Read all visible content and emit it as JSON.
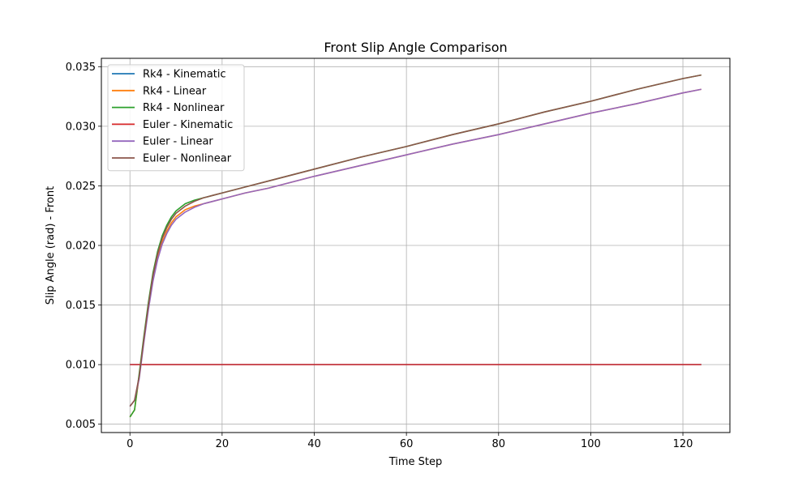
{
  "chart_data": {
    "type": "line",
    "title": "Front Slip Angle Comparison",
    "xlabel": "Time Step",
    "ylabel": "Slip Angle (rad) - Front",
    "xlim": [
      -6.2,
      130.2
    ],
    "ylim": [
      0.0043,
      0.0357
    ],
    "xticks": [
      0,
      20,
      40,
      60,
      80,
      100,
      120
    ],
    "xtick_labels": [
      "0",
      "20",
      "40",
      "60",
      "80",
      "100",
      "120"
    ],
    "yticks": [
      0.005,
      0.01,
      0.015,
      0.02,
      0.025,
      0.03,
      0.035
    ],
    "ytick_labels": [
      "0.005",
      "0.010",
      "0.015",
      "0.020",
      "0.025",
      "0.030",
      "0.035"
    ],
    "grid": true,
    "legend_position": "top-left",
    "series": [
      {
        "name": "Rk4 - Kinematic",
        "color": "#1f77b4",
        "x": [
          0,
          124
        ],
        "y": [
          0.01,
          0.01
        ]
      },
      {
        "name": "Rk4 - Linear",
        "color": "#ff7f0e",
        "x": [
          0,
          1,
          2,
          3,
          4,
          5,
          6,
          7,
          8,
          9,
          10,
          12,
          14,
          16,
          18,
          20,
          25,
          30,
          40,
          50,
          60,
          70,
          80,
          90,
          100,
          110,
          120,
          124
        ],
        "y": [
          0.0056,
          0.0062,
          0.009,
          0.012,
          0.0148,
          0.0172,
          0.019,
          0.0203,
          0.0212,
          0.0219,
          0.0224,
          0.023,
          0.0233,
          0.0235,
          0.0237,
          0.0239,
          0.0244,
          0.0248,
          0.0258,
          0.0267,
          0.0276,
          0.0285,
          0.0293,
          0.0302,
          0.0311,
          0.0319,
          0.0328,
          0.0331
        ]
      },
      {
        "name": "Rk4 - Nonlinear",
        "color": "#2ca02c",
        "x": [
          0,
          1,
          2,
          3,
          4,
          5,
          6,
          7,
          8,
          9,
          10,
          12,
          14,
          16,
          18,
          20,
          25,
          30,
          40,
          50,
          60,
          70,
          80,
          90,
          100,
          110,
          120,
          124
        ],
        "y": [
          0.0056,
          0.0062,
          0.0092,
          0.0123,
          0.0152,
          0.0177,
          0.0195,
          0.0208,
          0.0217,
          0.0224,
          0.0229,
          0.0235,
          0.0238,
          0.024,
          0.0242,
          0.0244,
          0.0249,
          0.0254,
          0.0264,
          0.0274,
          0.0283,
          0.0293,
          0.0302,
          0.0312,
          0.0321,
          0.0331,
          0.034,
          0.0343
        ]
      },
      {
        "name": "Euler - Kinematic",
        "color": "#d62728",
        "x": [
          0,
          124
        ],
        "y": [
          0.01,
          0.01
        ]
      },
      {
        "name": "Euler - Linear",
        "color": "#9467bd",
        "x": [
          0,
          1,
          2,
          3,
          4,
          5,
          6,
          7,
          8,
          9,
          10,
          12,
          14,
          16,
          18,
          20,
          25,
          30,
          40,
          50,
          60,
          70,
          80,
          90,
          100,
          110,
          120,
          124
        ],
        "y": [
          0.0065,
          0.007,
          0.0088,
          0.0118,
          0.0146,
          0.017,
          0.0188,
          0.0201,
          0.021,
          0.0217,
          0.0222,
          0.0228,
          0.0232,
          0.0235,
          0.0237,
          0.0239,
          0.0244,
          0.0248,
          0.0258,
          0.0267,
          0.0276,
          0.0285,
          0.0293,
          0.0302,
          0.0311,
          0.0319,
          0.0328,
          0.0331
        ]
      },
      {
        "name": "Euler - Nonlinear",
        "color": "#8c564b",
        "x": [
          0,
          1,
          2,
          3,
          4,
          5,
          6,
          7,
          8,
          9,
          10,
          12,
          14,
          16,
          18,
          20,
          25,
          30,
          40,
          50,
          60,
          70,
          80,
          90,
          100,
          110,
          120,
          124
        ],
        "y": [
          0.0065,
          0.007,
          0.009,
          0.0121,
          0.015,
          0.0175,
          0.0193,
          0.0206,
          0.0215,
          0.0222,
          0.0227,
          0.0233,
          0.0237,
          0.024,
          0.0242,
          0.0244,
          0.0249,
          0.0254,
          0.0264,
          0.0274,
          0.0283,
          0.0293,
          0.0302,
          0.0312,
          0.0321,
          0.0331,
          0.034,
          0.0343
        ]
      }
    ]
  }
}
